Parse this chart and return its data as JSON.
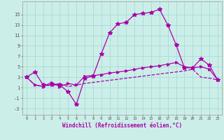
{
  "xlabel": "Windchill (Refroidissement éolien,°C)",
  "bg_color": "#cceee8",
  "grid_color": "#aaddda",
  "line_color": "#aa00aa",
  "x": [
    0,
    1,
    2,
    3,
    4,
    5,
    6,
    7,
    8,
    9,
    10,
    11,
    12,
    13,
    14,
    15,
    16,
    17,
    18,
    19,
    20,
    21,
    22,
    23
  ],
  "line1": [
    3.0,
    4.0,
    1.5,
    1.5,
    1.5,
    0.2,
    -2.2,
    2.8,
    3.2,
    7.5,
    11.5,
    13.2,
    13.5,
    15.0,
    15.2,
    15.4,
    16.0,
    13.0,
    9.2,
    4.8,
    4.8,
    6.5,
    5.3,
    2.5
  ],
  "line2": [
    3.0,
    1.5,
    1.2,
    2.0,
    1.2,
    1.8,
    1.5,
    3.2,
    3.3,
    3.5,
    3.8,
    4.0,
    4.2,
    4.5,
    4.8,
    5.0,
    5.2,
    5.5,
    5.8,
    5.0,
    4.8,
    5.0,
    4.5,
    2.5
  ],
  "line3": [
    3.0,
    1.5,
    1.3,
    1.5,
    1.8,
    1.2,
    1.5,
    1.8,
    2.0,
    2.2,
    2.4,
    2.6,
    2.8,
    3.0,
    3.2,
    3.4,
    3.6,
    3.8,
    4.0,
    4.2,
    4.5,
    3.0,
    2.8,
    2.5
  ],
  "yticks": [
    -3,
    -1,
    1,
    3,
    5,
    7,
    9,
    11,
    13,
    15
  ],
  "ylim": [
    -4.2,
    17.5
  ],
  "xlim": [
    -0.5,
    23.5
  ]
}
